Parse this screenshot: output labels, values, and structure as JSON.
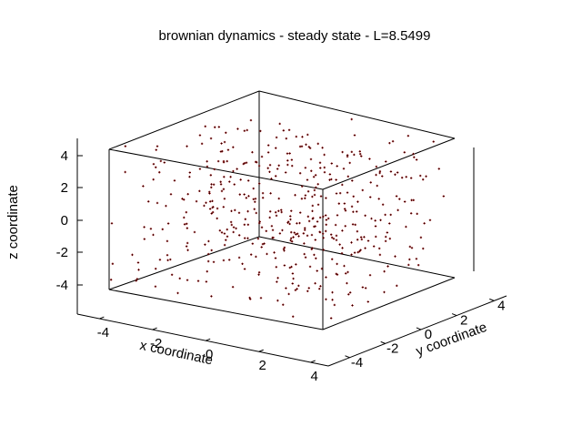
{
  "chart_data": {
    "type": "scatter",
    "projection": "3d",
    "title": "brownian dynamics - steady state - L=8.5499",
    "xlabel": "x coordinate",
    "ylabel": "y coordinate",
    "zlabel": "z coordinate",
    "xlim": [
      -4.27495,
      4.27495
    ],
    "ylim": [
      -4.27495,
      4.27495
    ],
    "zlim": [
      -4.27495,
      4.27495
    ],
    "x_ticks": [
      "-4",
      "-2",
      "0",
      "2",
      "4"
    ],
    "y_ticks": [
      "-4",
      "-2",
      "0",
      "2",
      "4"
    ],
    "z_ticks": [
      "4",
      "2",
      "0",
      "-2",
      "-4"
    ],
    "grid": false,
    "legend": "none",
    "point_color": "#8b0000",
    "point_count": 500,
    "note_values": "points uniformly distributed within the box (x,y,z in [-L/2, L/2])"
  }
}
